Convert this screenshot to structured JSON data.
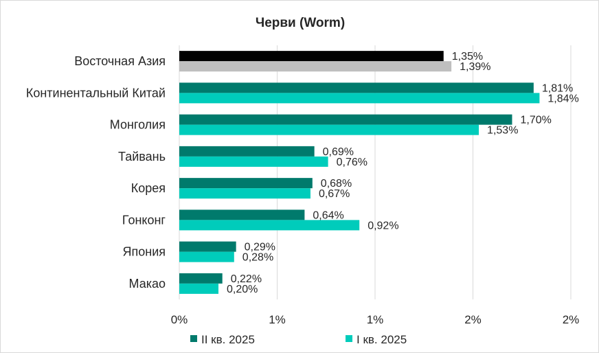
{
  "chart_data": {
    "type": "bar",
    "orientation": "horizontal",
    "title": "Черви (Worm)",
    "categories": [
      "Восточная Азия",
      "Континентальный Китай",
      "Монголия",
      "Тайвань",
      "Корея",
      "Гонконг",
      "Япония",
      "Макао"
    ],
    "series": [
      {
        "name": "II кв. 2025",
        "values": [
          1.35,
          1.81,
          1.7,
          0.69,
          0.68,
          0.64,
          0.29,
          0.22
        ],
        "labels": [
          "1,35%",
          "1,81%",
          "1,70%",
          "0,69%",
          "0,68%",
          "0,64%",
          "0,29%",
          "0,22%"
        ],
        "color": "#007a6c",
        "highlight_color": "#000000"
      },
      {
        "name": "I кв. 2025",
        "values": [
          1.39,
          1.84,
          1.53,
          0.76,
          0.67,
          0.92,
          0.28,
          0.2
        ],
        "labels": [
          "1,39%",
          "1,84%",
          "1,53%",
          "0,76%",
          "0,67%",
          "0,92%",
          "0,28%",
          "0,20%"
        ],
        "color": "#00ccbb",
        "highlight_color": "#bfbfbf"
      }
    ],
    "highlight_category_index": 0,
    "xlim": [
      0,
      2.0
    ],
    "x_ticks": [
      0,
      0.5,
      1.0,
      1.5,
      2.0
    ],
    "x_tick_labels": [
      "0%",
      "1%",
      "1%",
      "2%",
      "2%"
    ],
    "grid": true,
    "legend_position": "bottom"
  }
}
